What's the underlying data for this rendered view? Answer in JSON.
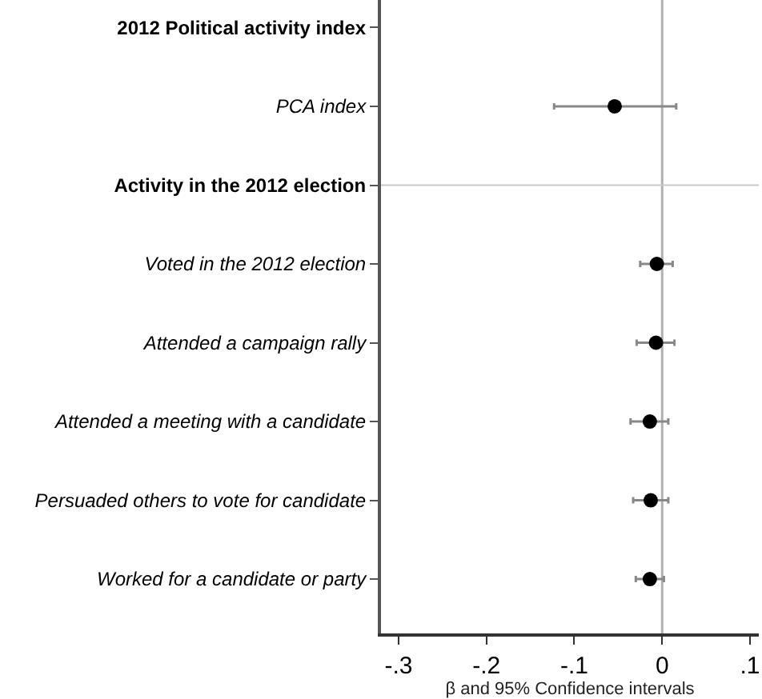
{
  "chart_data": {
    "type": "scatter",
    "orientation": "horizontal",
    "xlabel": "β and 95% Confidence intervals",
    "categories": [
      "2012 Political activity index",
      "PCA index",
      "Activity in the 2012 election",
      "Voted in the 2012 election",
      "Attended a campaign rally",
      "Attended a meeting with a candidate",
      "Persuaded others to vote for candidate",
      "Worked for a candidate or party"
    ],
    "series": [
      {
        "color": "#000000",
        "values": [
          null,
          -0.054,
          null,
          -0.006,
          -0.007,
          -0.014,
          -0.013,
          -0.014
        ],
        "errors": [
          null,
          [
            -0.123,
            0.016
          ],
          null,
          [
            -0.025,
            0.012
          ],
          [
            -0.029,
            0.014
          ],
          [
            -0.036,
            0.007
          ],
          [
            -0.033,
            0.007
          ],
          [
            -0.03,
            0.002
          ]
        ]
      }
    ],
    "xlim": [
      -0.32,
      0.11
    ],
    "xticks": [
      {
        "value": -0.3,
        "label": "-.3"
      },
      {
        "value": -0.2,
        "label": "-.2"
      },
      {
        "value": -0.1,
        "label": "-.1"
      },
      0,
      {
        "value": 0.1,
        "label": ".1"
      }
    ],
    "ref_lines": [
      {
        "axis": "x",
        "value": 0,
        "color": "#b0b0b0"
      },
      {
        "axis": "y",
        "value": "Activity in the 2012 election",
        "color": "#c8c8c8"
      }
    ],
    "marker": "circle"
  }
}
